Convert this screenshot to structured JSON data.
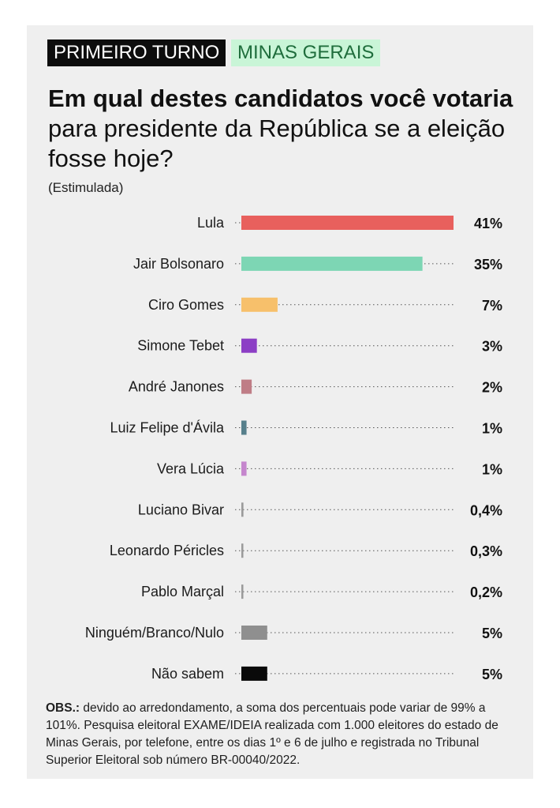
{
  "tags": {
    "round": "PRIMEIRO TURNO",
    "state": "MINAS GERAIS"
  },
  "title": {
    "bold": "Em qual destes candidatos você votaria",
    "rest": " para presidente da República se a eleição fosse hoje?"
  },
  "subtitle": "(Estimulada)",
  "note": {
    "label": "OBS.:",
    "text": " devido ao arredondamento, a soma dos percentuais pode variar de 99% a 101%. Pesquisa eleitoral EXAME/IDEIA realizada com 1.000 eleitores do estado de Minas Gerais, por telefone, entre os dias 1º e 6 de julho e registrada no Tribunal Superior Eleitoral sob número BR-00040/2022."
  },
  "colors": {
    "card_bg": "#efefef",
    "tag_dark": "#0d0d0d",
    "tag_green": "#c9f5d7"
  },
  "chart_data": {
    "type": "bar",
    "orientation": "horizontal",
    "categories": [
      "Lula",
      "Jair Bolsonaro",
      "Ciro Gomes",
      "Simone Tebet",
      "André Janones",
      "Luiz Felipe d'Ávila",
      "Vera Lúcia",
      "Luciano Bivar",
      "Leonardo Péricles",
      "Pablo Marçal",
      "Ninguém/Branco/Nulo",
      "Não sabem"
    ],
    "values": [
      41,
      35,
      7,
      3,
      2,
      1,
      1,
      0.4,
      0.3,
      0.2,
      5,
      5
    ],
    "labels": [
      "41%",
      "35%",
      "7%",
      "3%",
      "2%",
      "1%",
      "1%",
      "0,4%",
      "0,3%",
      "0,2%",
      "5%",
      "5%"
    ],
    "colors": [
      "#e8605d",
      "#7dd6b4",
      "#f7c06b",
      "#8c3fc5",
      "#bf7d86",
      "#567f8b",
      "#c586cd",
      "#9a9a9a",
      "#9a9a9a",
      "#9a9a9a",
      "#8f8f8f",
      "#0a0a0a"
    ],
    "unit": "%",
    "xlim": [
      0,
      41
    ],
    "grid": false
  }
}
